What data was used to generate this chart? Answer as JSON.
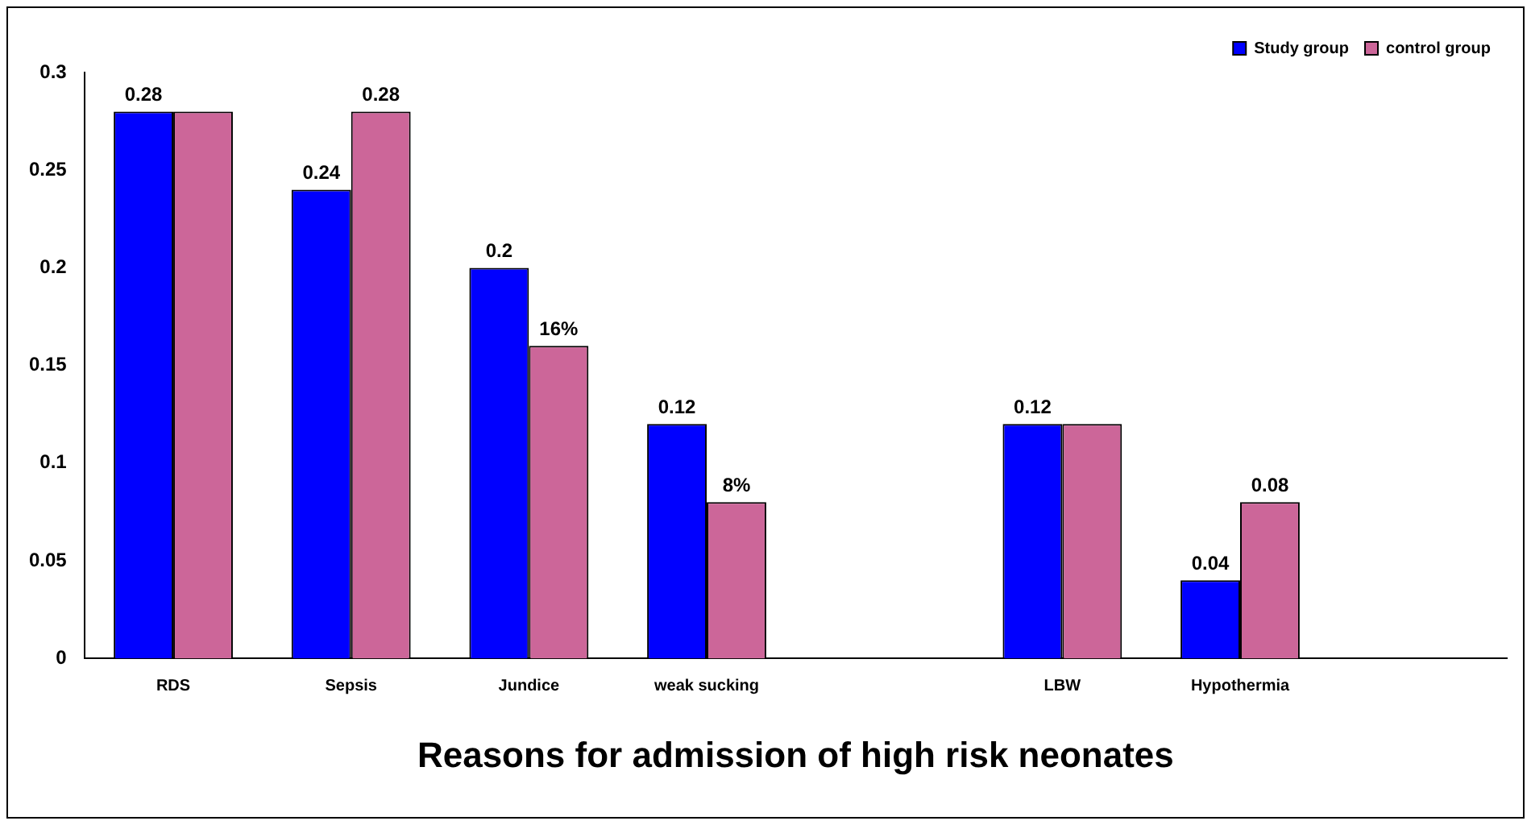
{
  "chart_data": {
    "type": "bar",
    "xlabel": "Reasons for admission of high risk neonates",
    "categories": [
      "RDS",
      "Sepsis",
      "Jundice",
      "weak sucking",
      null,
      "LBW",
      "Hypothermia",
      null
    ],
    "series": [
      {
        "name": "Study group",
        "color": "#0000ff",
        "values": [
          0.28,
          0.24,
          0.2,
          0.12,
          null,
          0.12,
          0.04,
          null
        ],
        "value_labels": [
          "0.28",
          "0.24",
          "0.2",
          "0.12",
          null,
          "0.12",
          "0.04",
          null
        ]
      },
      {
        "name": "control group",
        "color": "#cc6699",
        "values": [
          0.28,
          0.28,
          0.16,
          0.08,
          null,
          0.12,
          0.08,
          null
        ],
        "value_labels": [
          null,
          "0.28",
          "16%",
          "8%",
          null,
          null,
          "0.08",
          null
        ]
      }
    ],
    "ylim": [
      0,
      0.3
    ],
    "yticks": [
      0,
      0.05,
      0.1,
      0.15,
      0.2,
      0.25,
      0.3
    ],
    "grid": false,
    "legend": "top right"
  }
}
